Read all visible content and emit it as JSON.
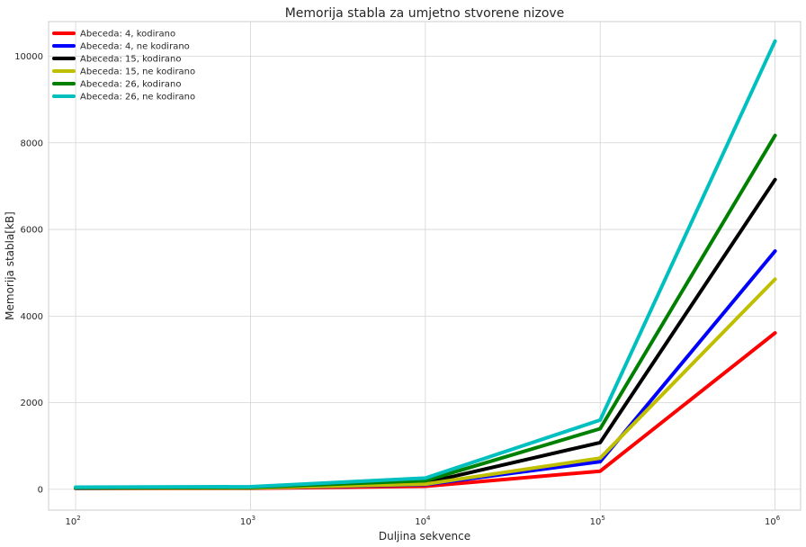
{
  "chart_data": {
    "type": "line",
    "title": "Memorija stabla za umjetno stvorene nizove",
    "xlabel": "Duljina sekvence",
    "ylabel": "Memorija stabla[kB]",
    "xscale": "log",
    "x": [
      100,
      1000,
      10000,
      100000,
      1000000
    ],
    "xlim": [
      70,
      1400000
    ],
    "ylim": [
      -480,
      10800
    ],
    "x_ticks": [
      {
        "value": 100,
        "base": "10",
        "exp": "2"
      },
      {
        "value": 1000,
        "base": "10",
        "exp": "3"
      },
      {
        "value": 10000,
        "base": "10",
        "exp": "4"
      },
      {
        "value": 100000,
        "base": "10",
        "exp": "5"
      },
      {
        "value": 1000000,
        "base": "10",
        "exp": "6"
      }
    ],
    "y_ticks": [
      0,
      2000,
      4000,
      6000,
      8000,
      10000
    ],
    "grid": true,
    "legend_position": "top-left",
    "series": [
      {
        "name": "Abeceda: 4, kodirano",
        "color": "#ff0000",
        "values": [
          20,
          25,
          70,
          420,
          3610
        ]
      },
      {
        "name": "Abeceda: 4, ne kodirano",
        "color": "#0000ff",
        "values": [
          25,
          30,
          110,
          640,
          5500
        ]
      },
      {
        "name": "Abeceda: 15, kodirano",
        "color": "#000000",
        "values": [
          30,
          35,
          150,
          1080,
          7150
        ]
      },
      {
        "name": "Abeceda: 15, ne kodirano",
        "color": "#bfbf00",
        "values": [
          28,
          32,
          120,
          720,
          4850
        ]
      },
      {
        "name": "Abeceda: 26, kodirano",
        "color": "#008000",
        "values": [
          35,
          45,
          200,
          1400,
          8170
        ]
      },
      {
        "name": "Abeceda: 26, ne kodirano",
        "color": "#00bfbf",
        "values": [
          50,
          60,
          260,
          1600,
          10350
        ]
      }
    ]
  }
}
